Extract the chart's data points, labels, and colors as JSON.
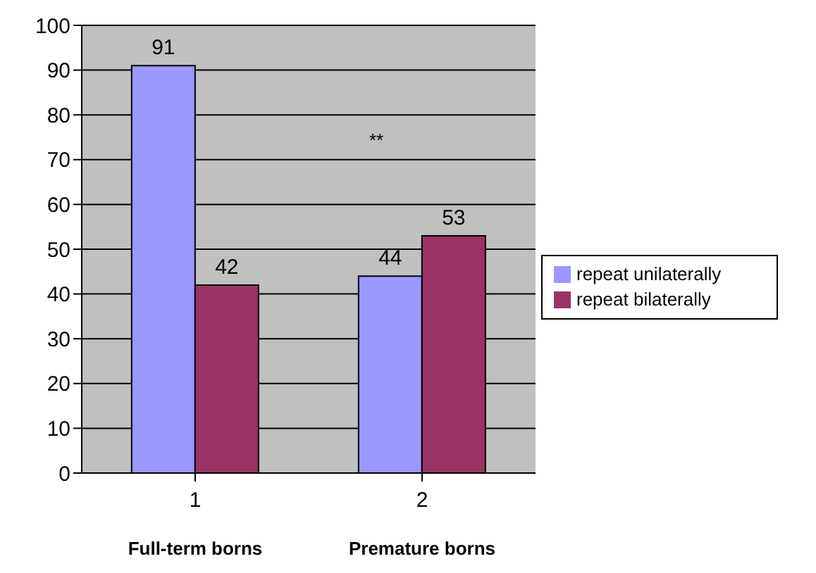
{
  "chart_data": {
    "type": "bar",
    "categories": [
      "1",
      "2"
    ],
    "series": [
      {
        "name": "repeat unilaterally",
        "color": "#9999ff",
        "values": [
          91,
          44
        ]
      },
      {
        "name": "repeat bilaterally",
        "color": "#993366",
        "values": [
          42,
          53
        ]
      }
    ],
    "ylim": [
      0,
      100
    ],
    "yticks": [
      0,
      10,
      20,
      30,
      40,
      50,
      60,
      70,
      80,
      90,
      100
    ],
    "grid": "y",
    "legend": "right",
    "data_labels": true,
    "annotations": [
      "**",
      "Full-term borns",
      "Premature borns"
    ]
  }
}
